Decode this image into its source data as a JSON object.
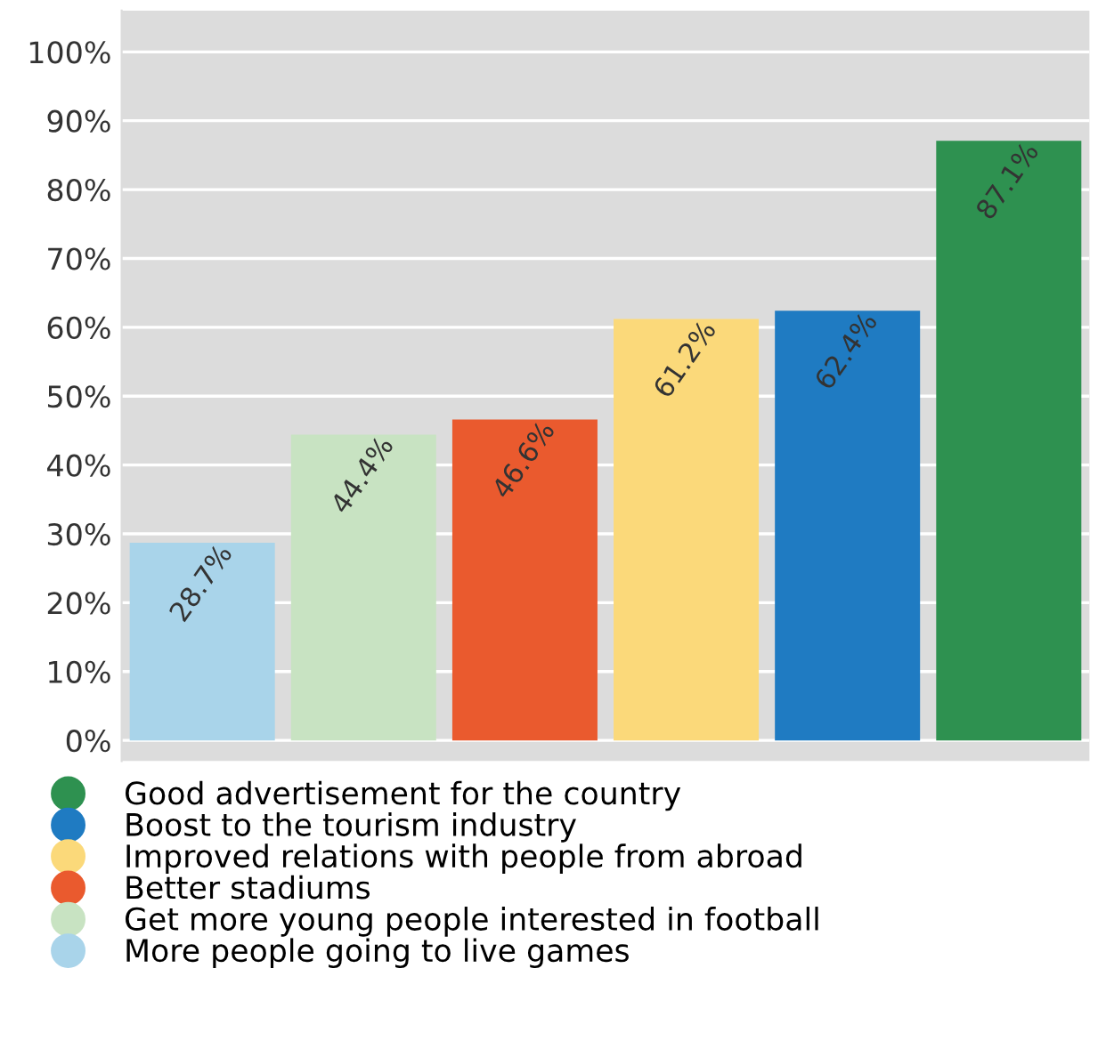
{
  "chart_data": {
    "type": "bar",
    "categories": [
      null,
      null,
      null,
      null,
      null,
      null
    ],
    "series": [
      {
        "name": "More people going to live games",
        "color": "#a9d4ea",
        "values": [
          28.7,
          null,
          null,
          null,
          null,
          null
        ],
        "value_labels": [
          "28.7%",
          null,
          null,
          null,
          null,
          null
        ]
      },
      {
        "name": "Get more young people interested in football",
        "color": "#c8e3c2",
        "values": [
          null,
          44.4,
          null,
          null,
          null,
          null
        ],
        "value_labels": [
          null,
          "44.4%",
          null,
          null,
          null,
          null
        ]
      },
      {
        "name": "Better stadiums",
        "color": "#ea5a2e",
        "values": [
          null,
          null,
          46.6,
          null,
          null,
          null
        ],
        "value_labels": [
          null,
          null,
          "46.6%",
          null,
          null,
          null
        ]
      },
      {
        "name": "Improved relations with people from abroad",
        "color": "#fbd97a",
        "values": [
          null,
          null,
          null,
          61.2,
          null,
          null
        ],
        "value_labels": [
          null,
          null,
          null,
          "61.2%",
          null,
          null
        ]
      },
      {
        "name": "Boost to the tourism industry",
        "color": "#1f7bc2",
        "values": [
          null,
          null,
          null,
          null,
          62.4,
          null
        ],
        "value_labels": [
          null,
          null,
          null,
          null,
          "62.4%",
          null
        ]
      },
      {
        "name": "Good advertisement for the country",
        "color": "#2e9150",
        "values": [
          null,
          null,
          null,
          null,
          null,
          87.1
        ],
        "value_labels": [
          null,
          null,
          null,
          null,
          null,
          "87.1%"
        ]
      }
    ],
    "ylim": [
      -3,
      106
    ],
    "yticks": [
      {
        "value": 0,
        "label": "0%"
      },
      {
        "value": 10,
        "label": "10%"
      },
      {
        "value": 20,
        "label": "20%"
      },
      {
        "value": 30,
        "label": "30%"
      },
      {
        "value": 40,
        "label": "40%"
      },
      {
        "value": 50,
        "label": "50%"
      },
      {
        "value": 60,
        "label": "60%"
      },
      {
        "value": 70,
        "label": "70%"
      },
      {
        "value": 80,
        "label": "80%"
      },
      {
        "value": 90,
        "label": "90%"
      },
      {
        "value": 100,
        "label": "100%"
      }
    ],
    "grid": "y",
    "legend": "bottom",
    "marker": "circle",
    "tick_labels": "y"
  }
}
